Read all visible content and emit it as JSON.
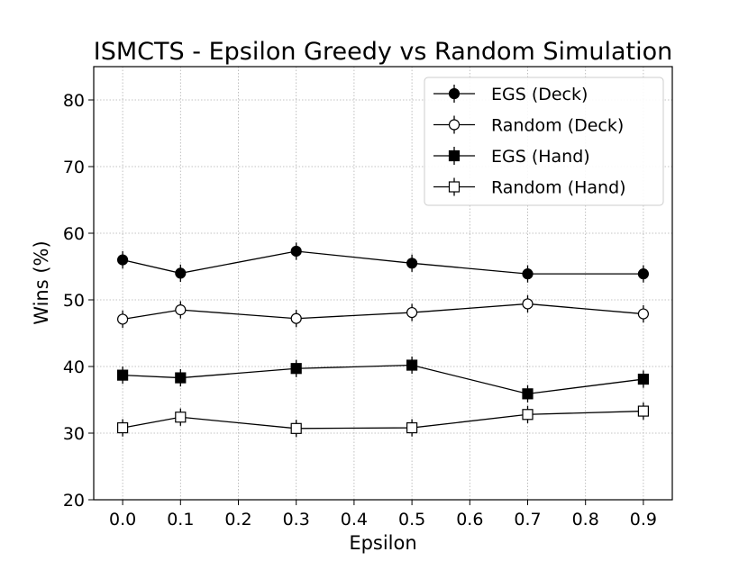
{
  "chart_data": {
    "type": "line",
    "title": "ISMCTS - Epsilon Greedy vs Random Simulation",
    "xlabel": "Epsilon",
    "ylabel": "Wins (%)",
    "xlim": [
      -0.05,
      0.95
    ],
    "ylim": [
      20,
      85
    ],
    "xticks": [
      0.0,
      0.1,
      0.2,
      0.3,
      0.4,
      0.5,
      0.6,
      0.7,
      0.8,
      0.9
    ],
    "xtick_labels": [
      "0.0",
      "0.1",
      "0.2",
      "0.3",
      "0.4",
      "0.5",
      "0.6",
      "0.7",
      "0.8",
      "0.9"
    ],
    "yticks": [
      20,
      30,
      40,
      50,
      60,
      70,
      80
    ],
    "ytick_labels": [
      "20",
      "30",
      "40",
      "50",
      "60",
      "70",
      "80"
    ],
    "grid": true,
    "legend_position": "top-right",
    "x": [
      0.0,
      0.1,
      0.3,
      0.5,
      0.7,
      0.9
    ],
    "error": 1.3,
    "series": [
      {
        "name": "EGS (Deck)",
        "marker": "circle",
        "fill": "#000000",
        "values": [
          56.0,
          54.0,
          57.3,
          55.5,
          53.9,
          53.9
        ]
      },
      {
        "name": "Random (Deck)",
        "marker": "circle",
        "fill": "#ffffff",
        "values": [
          47.1,
          48.5,
          47.2,
          48.1,
          49.4,
          47.9
        ]
      },
      {
        "name": "EGS (Hand)",
        "marker": "square",
        "fill": "#000000",
        "values": [
          38.7,
          38.3,
          39.7,
          40.2,
          35.9,
          38.1
        ]
      },
      {
        "name": "Random (Hand)",
        "marker": "square",
        "fill": "#ffffff",
        "values": [
          30.8,
          32.4,
          30.7,
          30.8,
          32.8,
          33.3
        ]
      }
    ]
  }
}
